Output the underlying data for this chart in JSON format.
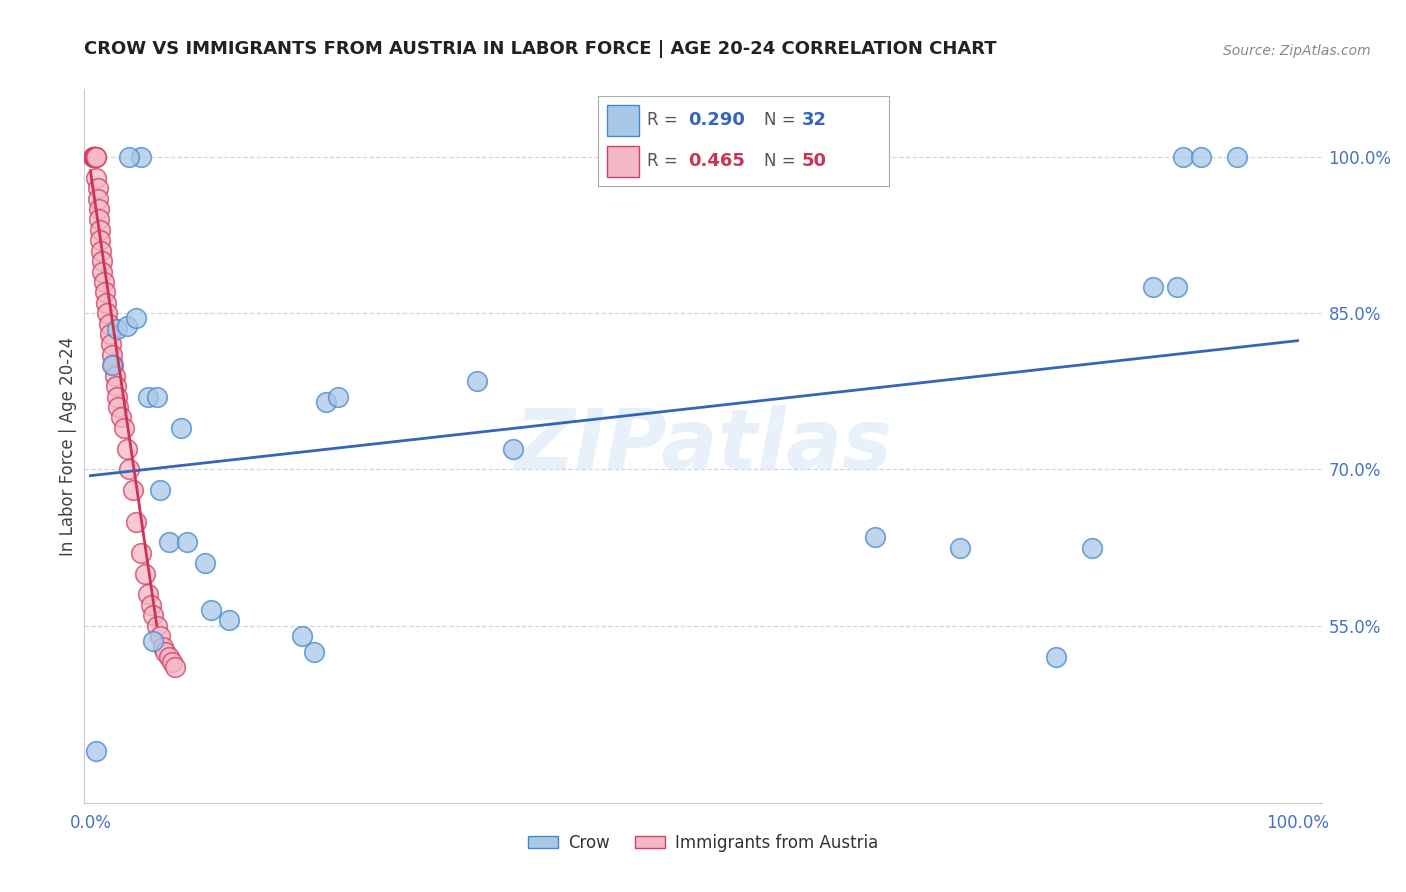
{
  "title": "CROW VS IMMIGRANTS FROM AUSTRIA IN LABOR FORCE | AGE 20-24 CORRELATION CHART",
  "source": "Source: ZipAtlas.com",
  "ylabel": "In Labor Force | Age 20-24",
  "watermark": "ZIPatlas",
  "yticks": [
    0.55,
    0.7,
    0.85,
    1.0
  ],
  "ytick_labels": [
    "55.0%",
    "70.0%",
    "85.0%",
    "100.0%"
  ],
  "blue_color": "#a8c8e8",
  "pink_color": "#f4b8c8",
  "blue_edge_color": "#4488cc",
  "pink_edge_color": "#d04060",
  "blue_line_color": "#3366bb",
  "pink_line_color": "#cc3355",
  "crow_x": [
    0.005,
    0.018,
    0.022,
    0.03,
    0.038,
    0.048,
    0.055,
    0.065,
    0.08,
    0.095,
    0.1,
    0.115,
    0.175,
    0.185,
    0.195,
    0.205,
    0.32,
    0.35,
    0.65,
    0.72,
    0.8,
    0.83,
    0.88,
    0.9,
    0.905,
    0.92,
    0.95,
    0.075,
    0.058,
    0.052,
    0.042,
    0.032
  ],
  "crow_y": [
    0.43,
    0.8,
    0.835,
    0.838,
    0.845,
    0.77,
    0.77,
    0.63,
    0.63,
    0.61,
    0.565,
    0.555,
    0.54,
    0.525,
    0.765,
    0.77,
    0.785,
    0.72,
    0.635,
    0.625,
    0.52,
    0.625,
    0.875,
    0.875,
    1.0,
    1.0,
    1.0,
    0.74,
    0.68,
    0.535,
    1.0,
    1.0
  ],
  "austria_x": [
    0.002,
    0.003,
    0.003,
    0.003,
    0.004,
    0.004,
    0.004,
    0.005,
    0.005,
    0.005,
    0.006,
    0.006,
    0.007,
    0.007,
    0.008,
    0.008,
    0.009,
    0.01,
    0.01,
    0.011,
    0.012,
    0.013,
    0.014,
    0.015,
    0.016,
    0.017,
    0.018,
    0.019,
    0.02,
    0.021,
    0.022,
    0.023,
    0.025,
    0.028,
    0.03,
    0.032,
    0.035,
    0.038,
    0.042,
    0.045,
    0.048,
    0.05,
    0.052,
    0.055,
    0.058,
    0.06,
    0.062,
    0.065,
    0.068,
    0.07
  ],
  "austria_y": [
    1.0,
    1.0,
    1.0,
    1.0,
    1.0,
    1.0,
    1.0,
    1.0,
    1.0,
    0.98,
    0.97,
    0.96,
    0.95,
    0.94,
    0.93,
    0.92,
    0.91,
    0.9,
    0.89,
    0.88,
    0.87,
    0.86,
    0.85,
    0.84,
    0.83,
    0.82,
    0.81,
    0.8,
    0.79,
    0.78,
    0.77,
    0.76,
    0.75,
    0.74,
    0.72,
    0.7,
    0.68,
    0.65,
    0.62,
    0.6,
    0.58,
    0.57,
    0.56,
    0.55,
    0.54,
    0.53,
    0.525,
    0.52,
    0.515,
    0.51
  ]
}
